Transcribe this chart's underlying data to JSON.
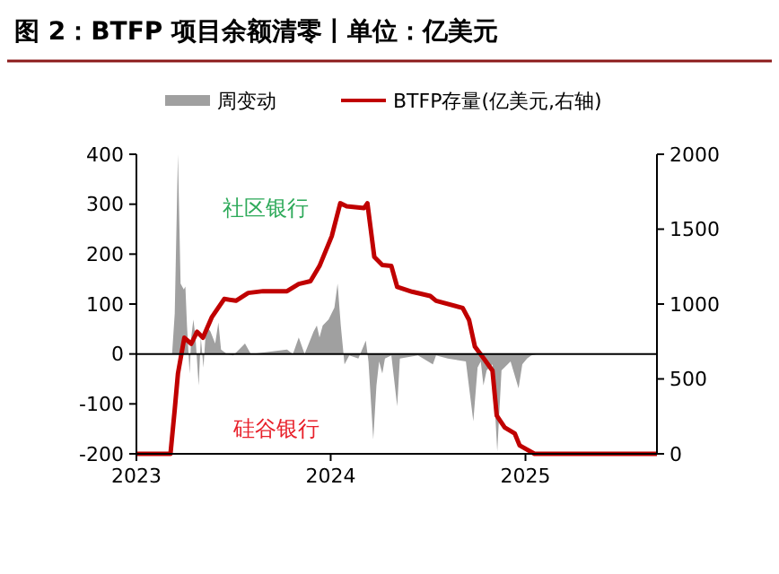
{
  "chart_data": {
    "type": "line",
    "title": "图 2：BTFP 项目余额清零丨单位：亿美元",
    "xlim": [
      "2023-01-01",
      "2025-09-05"
    ],
    "xticks": [
      {
        "value": "2023-01-01",
        "label": "2023"
      },
      {
        "value": "2024-01-01",
        "label": "2024"
      },
      {
        "value": "2025-01-01",
        "label": "2025"
      }
    ],
    "ylim": [
      -200,
      400
    ],
    "yticks": [
      -200,
      -100,
      0,
      100,
      200,
      300,
      400
    ],
    "y2lim": [
      0,
      2000
    ],
    "y2ticks": [
      0,
      500,
      1000,
      1500,
      2000
    ],
    "legend": "top",
    "grid": false,
    "ref_lines": [
      {
        "axis": "y",
        "value": 0,
        "color": "#000000"
      }
    ],
    "annotations": [
      "社区银行",
      "硅谷银行"
    ],
    "series": [
      {
        "name": "周变动",
        "type": "area",
        "color": "#a0a0a0",
        "x": [
          "2023-03-06",
          "2023-03-09",
          "2023-03-14",
          "2023-03-20",
          "2023-03-25",
          "2023-03-31",
          "2023-04-03",
          "2023-04-06",
          "2023-04-11",
          "2023-04-14",
          "2023-04-18",
          "2023-04-22",
          "2023-04-28",
          "2023-05-02",
          "2023-05-07",
          "2023-05-12",
          "2023-05-20",
          "2023-05-29",
          "2023-06-04",
          "2023-06-09",
          "2023-06-20",
          "2023-07-02",
          "2023-07-24",
          "2023-08-04",
          "2023-10-11",
          "2023-10-22",
          "2023-11-02",
          "2023-11-13",
          "2023-11-30",
          "2023-12-06",
          "2023-12-11",
          "2023-12-17",
          "2023-12-28",
          "2024-01-08",
          "2024-01-14",
          "2024-01-20",
          "2024-01-27",
          "2024-02-05",
          "2024-02-22",
          "2024-03-07",
          "2024-03-12",
          "2024-03-21",
          "2024-03-27",
          "2024-04-01",
          "2024-04-07",
          "2024-04-12",
          "2024-04-24",
          "2024-05-05",
          "2024-05-10",
          "2024-06-13",
          "2024-07-11",
          "2024-07-17",
          "2024-08-08",
          "2024-09-11",
          "2024-09-25",
          "2024-10-03",
          "2024-10-09",
          "2024-10-14",
          "2024-10-20",
          "2024-10-31",
          "2024-11-09",
          "2024-11-17",
          "2024-12-04",
          "2024-12-19",
          "2024-12-26",
          "2025-01-04",
          "2025-01-12",
          "2025-01-23"
        ],
        "values": [
          0,
          0,
          81,
          400,
          141,
          129,
          135,
          57,
          -39,
          33,
          69,
          33,
          -63,
          33,
          -27,
          57,
          45,
          21,
          63,
          9,
          0,
          -3,
          21,
          0,
          9,
          0,
          33,
          0,
          45,
          57,
          33,
          57,
          69,
          93,
          141,
          57,
          -21,
          -3,
          -9,
          27,
          -15,
          -171,
          -63,
          -15,
          -39,
          -9,
          -3,
          -105,
          -9,
          -3,
          -21,
          -3,
          -9,
          -15,
          -135,
          -27,
          -15,
          -63,
          -33,
          -21,
          -195,
          -33,
          -15,
          -69,
          -21,
          -9,
          -3,
          0
        ]
      },
      {
        "name": "BTFP存量(亿美元,右轴)",
        "axis": "y2",
        "color": "#c00000",
        "x": [
          "2023-01-01",
          "2023-03-06",
          "2023-03-14",
          "2023-03-20",
          "2023-04-01",
          "2023-04-14",
          "2023-04-25",
          "2023-05-06",
          "2023-05-23",
          "2023-06-15",
          "2023-07-07",
          "2023-07-30",
          "2023-08-27",
          "2023-10-11",
          "2023-11-02",
          "2023-11-24",
          "2023-12-11",
          "2024-01-03",
          "2024-01-19",
          "2024-01-31",
          "2024-03-04",
          "2024-03-10",
          "2024-03-23",
          "2024-04-07",
          "2024-04-24",
          "2024-05-05",
          "2024-06-02",
          "2024-07-06",
          "2024-07-17",
          "2024-09-05",
          "2024-09-17",
          "2024-09-28",
          "2024-10-15",
          "2024-10-31",
          "2024-11-08",
          "2024-11-23",
          "2024-12-12",
          "2024-12-21",
          "2025-01-18",
          "2025-09-05"
        ],
        "values": [
          0,
          0,
          296,
          535,
          775,
          735,
          815,
          775,
          914,
          1034,
          1022,
          1074,
          1086,
          1086,
          1134,
          1153,
          1254,
          1453,
          1673,
          1653,
          1641,
          1673,
          1314,
          1261,
          1254,
          1114,
          1082,
          1054,
          1022,
          974,
          894,
          715,
          635,
          555,
          255,
          176,
          135,
          56,
          0,
          0
        ]
      }
    ]
  }
}
